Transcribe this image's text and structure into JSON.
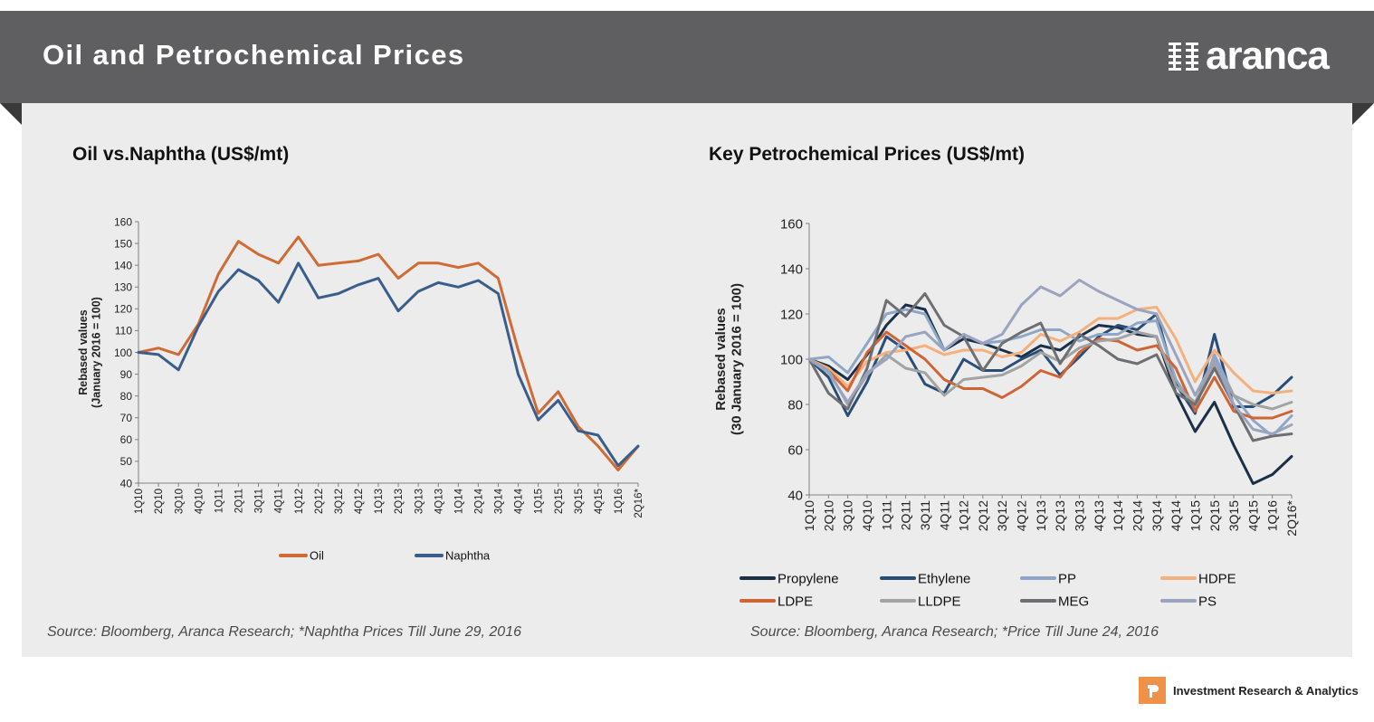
{
  "header": {
    "title": "Oil and Petrochemical Prices",
    "logo_text": "aranca",
    "logo_icon": "aranca-logo-icon"
  },
  "colors": {
    "banner": "#5f5f61",
    "oil": "#d06b35",
    "naphtha": "#3a5e8c"
  },
  "footer": {
    "label": "Investment Research & Analytics",
    "icon": "aranca-r-icon"
  },
  "chart_data": [
    {
      "type": "line",
      "title": "Oil vs.Naphtha  (US$/mt)",
      "ylabel_line1": "Rebased values",
      "ylabel_line2": "(January 2016 = 100)",
      "xlabel": "",
      "ylim": [
        40,
        160
      ],
      "ytick_step": 10,
      "categories": [
        "1Q10",
        "2Q10",
        "3Q10",
        "4Q10",
        "1Q11",
        "2Q11",
        "3Q11",
        "4Q11",
        "1Q12",
        "2Q12",
        "3Q12",
        "4Q12",
        "1Q13",
        "2Q13",
        "3Q13",
        "4Q13",
        "1Q14",
        "2Q14",
        "3Q14",
        "4Q14",
        "1Q15",
        "2Q15",
        "3Q15",
        "4Q15",
        "1Q16",
        "2Q16*"
      ],
      "series": [
        {
          "name": "Oil",
          "color": "#d06b35",
          "values": [
            100,
            102,
            99,
            113,
            136,
            151,
            145,
            141,
            153,
            140,
            141,
            142,
            145,
            134,
            141,
            141,
            139,
            141,
            134,
            101,
            72,
            82,
            66,
            57,
            46,
            57
          ]
        },
        {
          "name": "Naphtha",
          "color": "#3a5e8c",
          "values": [
            100,
            99,
            92,
            112,
            128,
            138,
            133,
            123,
            141,
            125,
            127,
            131,
            134,
            119,
            128,
            132,
            130,
            133,
            127,
            90,
            69,
            78,
            64,
            62,
            48,
            57
          ]
        }
      ],
      "legend_position": "bottom",
      "source": "Source: Bloomberg, Aranca Research;  *Naphtha Prices Till June 29, 2016"
    },
    {
      "type": "line",
      "title": "Key Petrochemical Prices (US$/mt)",
      "ylabel_line1": "Rebased values",
      "ylabel_line2": "(30 January  2016 = 100)",
      "xlabel": "",
      "ylim": [
        40,
        160
      ],
      "ytick_step": 20,
      "categories": [
        "1Q10",
        "2Q10",
        "3Q10",
        "4Q10",
        "1Q11",
        "2Q11",
        "3Q11",
        "4Q11",
        "1Q12",
        "2Q12",
        "3Q12",
        "4Q12",
        "1Q13",
        "2Q13",
        "3Q13",
        "4Q13",
        "1Q14",
        "2Q14",
        "3Q14",
        "4Q14",
        "1Q15",
        "2Q15",
        "3Q15",
        "4Q15",
        "1Q16",
        "2Q16*"
      ],
      "series": [
        {
          "name": "Propylene",
          "color": "#1b2f48",
          "values": [
            100,
            97,
            91,
            102,
            115,
            124,
            122,
            104,
            109,
            107,
            104,
            101,
            106,
            104,
            110,
            115,
            114,
            111,
            110,
            85,
            68,
            81,
            62,
            45,
            49,
            57
          ]
        },
        {
          "name": "Ethylene",
          "color": "#2a4d78",
          "values": [
            100,
            92,
            75,
            90,
            110,
            104,
            89,
            85,
            100,
            95,
            95,
            100,
            104,
            93,
            101,
            110,
            115,
            113,
            120,
            89,
            76,
            111,
            79,
            79,
            84,
            92
          ]
        },
        {
          "name": "PP",
          "color": "#8ea7c8",
          "values": [
            100,
            101,
            94,
            107,
            120,
            122,
            120,
            104,
            111,
            107,
            108,
            110,
            113,
            113,
            108,
            111,
            111,
            116,
            117,
            91,
            78,
            102,
            84,
            73,
            66,
            75
          ]
        },
        {
          "name": "HDPE",
          "color": "#f4b07d",
          "values": [
            100,
            96,
            88,
            99,
            103,
            104,
            106,
            102,
            104,
            104,
            101,
            103,
            111,
            108,
            112,
            118,
            118,
            122,
            123,
            109,
            90,
            104,
            94,
            86,
            85,
            86
          ]
        },
        {
          "name": "LDPE",
          "color": "#cf6535",
          "values": [
            100,
            95,
            86,
            103,
            112,
            106,
            100,
            91,
            87,
            87,
            83,
            88,
            95,
            92,
            103,
            109,
            108,
            104,
            106,
            96,
            77,
            92,
            77,
            74,
            74,
            77
          ]
        },
        {
          "name": "LLDPE",
          "color": "#a3a3a3",
          "values": [
            100,
            95,
            80,
            93,
            102,
            96,
            94,
            84,
            91,
            92,
            93,
            97,
            103,
            99,
            105,
            108,
            109,
            112,
            110,
            88,
            81,
            98,
            84,
            80,
            78,
            81
          ]
        },
        {
          "name": "MEG",
          "color": "#6e6f72",
          "values": [
            100,
            85,
            78,
            96,
            126,
            119,
            129,
            115,
            110,
            95,
            107,
            112,
            116,
            98,
            111,
            106,
            100,
            98,
            102,
            85,
            80,
            96,
            80,
            64,
            66,
            67
          ]
        },
        {
          "name": "PS",
          "color": "#9aa4c0",
          "values": [
            100,
            94,
            81,
            94,
            100,
            110,
            112,
            104,
            111,
            107,
            111,
            124,
            132,
            128,
            135,
            130,
            126,
            122,
            120,
            102,
            84,
            100,
            80,
            69,
            67,
            71
          ]
        }
      ],
      "legend_position": "bottom",
      "source": "Source: Bloomberg, Aranca Research; *Price Till June 24, 2016"
    }
  ]
}
